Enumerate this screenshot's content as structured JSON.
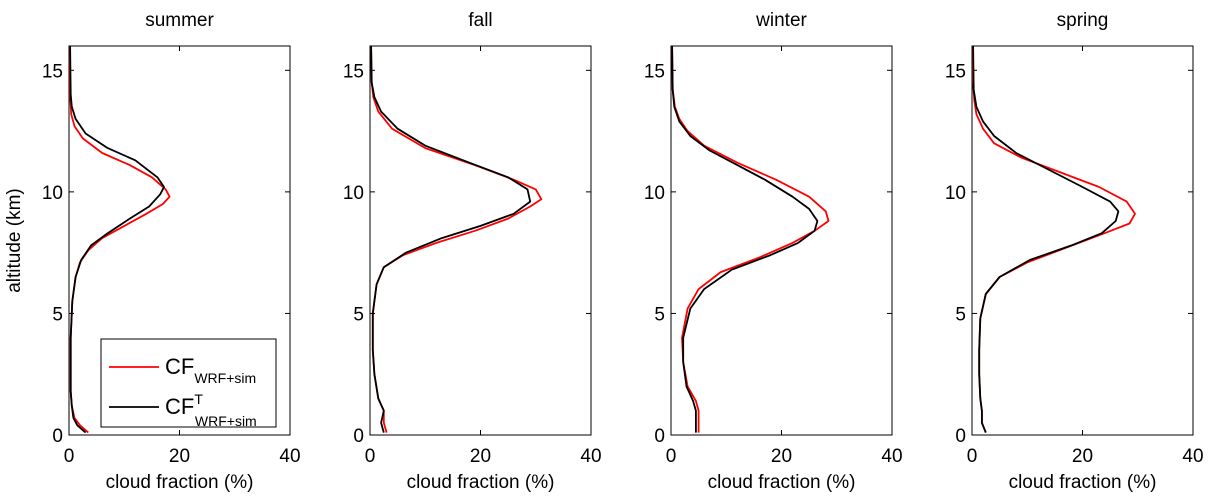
{
  "chart_data": [
    {
      "type": "line",
      "title": "summer",
      "xlabel": "cloud fraction (%)",
      "ylabel": "altitude (km)",
      "xlim": [
        0,
        40
      ],
      "ylim": [
        0,
        16
      ],
      "xticks": [
        "0",
        "20",
        "40"
      ],
      "yticks": [
        "0",
        "5",
        "10",
        "15"
      ],
      "series": [
        {
          "name": "red",
          "color": "#ff0000",
          "points": [
            [
              3.5,
              0.1
            ],
            [
              2,
              0.4
            ],
            [
              1,
              0.7
            ],
            [
              0.5,
              1.2
            ],
            [
              0.3,
              1.8
            ],
            [
              0.3,
              2.5
            ],
            [
              0.3,
              4
            ],
            [
              0.6,
              5.5
            ],
            [
              1.2,
              6.5
            ],
            [
              2,
              7.1
            ],
            [
              3.5,
              7.6
            ],
            [
              6,
              8.1
            ],
            [
              10,
              8.6
            ],
            [
              14,
              9.1
            ],
            [
              17,
              9.5
            ],
            [
              18.2,
              9.8
            ],
            [
              17.5,
              10.1
            ],
            [
              15,
              10.6
            ],
            [
              11,
              11.1
            ],
            [
              6,
              11.6
            ],
            [
              2.5,
              12.2
            ],
            [
              1,
              12.7
            ],
            [
              0.4,
              13.2
            ],
            [
              0.2,
              14
            ],
            [
              0.1,
              16
            ]
          ]
        },
        {
          "name": "black",
          "color": "#000000",
          "points": [
            [
              3,
              0.1
            ],
            [
              1.5,
              0.4
            ],
            [
              0.8,
              0.7
            ],
            [
              0.5,
              1.2
            ],
            [
              0.3,
              1.8
            ],
            [
              0.3,
              2.5
            ],
            [
              0.3,
              4
            ],
            [
              0.6,
              5.5
            ],
            [
              1.2,
              6.5
            ],
            [
              2.2,
              7.2
            ],
            [
              4,
              7.8
            ],
            [
              7,
              8.3
            ],
            [
              11,
              8.9
            ],
            [
              14.5,
              9.4
            ],
            [
              16.5,
              9.9
            ],
            [
              17.2,
              10.2
            ],
            [
              16,
              10.6
            ],
            [
              12,
              11.3
            ],
            [
              7,
              11.8
            ],
            [
              3,
              12.4
            ],
            [
              1.2,
              13
            ],
            [
              0.5,
              13.5
            ],
            [
              0.3,
              14
            ],
            [
              0.2,
              16
            ]
          ]
        }
      ],
      "legend": {
        "position": "bottom-left",
        "entries": [
          {
            "label": "CF",
            "sub": "WRF+sim",
            "sup": "",
            "color": "#ff0000"
          },
          {
            "label": "CF",
            "sub": "WRF+sim",
            "sup": "T",
            "color": "#000000"
          }
        ]
      }
    },
    {
      "type": "line",
      "title": "fall",
      "xlabel": "cloud fraction (%)",
      "ylabel": "",
      "xlim": [
        0,
        40
      ],
      "ylim": [
        0,
        16
      ],
      "xticks": [
        "0",
        "20",
        "40"
      ],
      "yticks": [
        "0",
        "5",
        "10",
        "15"
      ],
      "series": [
        {
          "name": "red",
          "color": "#ff0000",
          "points": [
            [
              3,
              0.1
            ],
            [
              2.5,
              0.5
            ],
            [
              2.5,
              1
            ],
            [
              1.5,
              1.5
            ],
            [
              0.8,
              2.5
            ],
            [
              0.5,
              3.5
            ],
            [
              0.5,
              5
            ],
            [
              1.2,
              6.2
            ],
            [
              2.5,
              6.9
            ],
            [
              6,
              7.4
            ],
            [
              12,
              7.9
            ],
            [
              19,
              8.4
            ],
            [
              25,
              8.9
            ],
            [
              29,
              9.4
            ],
            [
              31,
              9.7
            ],
            [
              30,
              10.1
            ],
            [
              26,
              10.5
            ],
            [
              19,
              11.1
            ],
            [
              10,
              11.8
            ],
            [
              4,
              12.6
            ],
            [
              1.5,
              13.3
            ],
            [
              0.6,
              13.9
            ],
            [
              0.3,
              14.5
            ],
            [
              0.2,
              16
            ]
          ]
        },
        {
          "name": "black",
          "color": "#000000",
          "points": [
            [
              2.5,
              0.1
            ],
            [
              2,
              0.5
            ],
            [
              2.5,
              1
            ],
            [
              1.5,
              1.5
            ],
            [
              0.8,
              2.5
            ],
            [
              0.5,
              3.5
            ],
            [
              0.5,
              5
            ],
            [
              1.2,
              6.2
            ],
            [
              2.5,
              6.9
            ],
            [
              6.5,
              7.5
            ],
            [
              13,
              8.1
            ],
            [
              20,
              8.6
            ],
            [
              26,
              9.1
            ],
            [
              29,
              9.6
            ],
            [
              28.5,
              10.1
            ],
            [
              25,
              10.6
            ],
            [
              18,
              11.2
            ],
            [
              10,
              11.9
            ],
            [
              5,
              12.6
            ],
            [
              2,
              13.3
            ],
            [
              0.8,
              13.9
            ],
            [
              0.3,
              14.5
            ],
            [
              0.2,
              16
            ]
          ]
        }
      ]
    },
    {
      "type": "line",
      "title": "winter",
      "xlabel": "cloud fraction (%)",
      "ylabel": "",
      "xlim": [
        0,
        40
      ],
      "ylim": [
        0,
        16
      ],
      "xticks": [
        "0",
        "20",
        "40"
      ],
      "yticks": [
        "0",
        "5",
        "10",
        "15"
      ],
      "series": [
        {
          "name": "red",
          "color": "#ff0000",
          "points": [
            [
              5,
              0.1
            ],
            [
              5,
              0.5
            ],
            [
              5,
              1
            ],
            [
              4.5,
              1.4
            ],
            [
              3,
              2
            ],
            [
              2.2,
              3
            ],
            [
              2,
              4
            ],
            [
              3,
              5.2
            ],
            [
              5,
              6
            ],
            [
              9,
              6.7
            ],
            [
              16,
              7.3
            ],
            [
              22,
              7.9
            ],
            [
              26,
              8.4
            ],
            [
              28.5,
              8.8
            ],
            [
              28,
              9.2
            ],
            [
              25,
              9.8
            ],
            [
              19,
              10.5
            ],
            [
              12,
              11.2
            ],
            [
              6,
              11.9
            ],
            [
              3,
              12.5
            ],
            [
              1.5,
              13
            ],
            [
              0.7,
              13.5
            ],
            [
              0.3,
              14.2
            ],
            [
              0.2,
              16
            ]
          ]
        },
        {
          "name": "black",
          "color": "#000000",
          "points": [
            [
              4.5,
              0.1
            ],
            [
              4.5,
              0.5
            ],
            [
              4.5,
              1
            ],
            [
              4,
              1.4
            ],
            [
              2.8,
              2
            ],
            [
              2.2,
              3
            ],
            [
              2.2,
              4
            ],
            [
              3.5,
              5.2
            ],
            [
              6,
              6
            ],
            [
              11,
              6.8
            ],
            [
              18,
              7.4
            ],
            [
              23,
              7.9
            ],
            [
              26,
              8.4
            ],
            [
              26.5,
              8.8
            ],
            [
              25,
              9.3
            ],
            [
              22,
              9.8
            ],
            [
              17,
              10.5
            ],
            [
              12,
              11.1
            ],
            [
              7,
              11.7
            ],
            [
              3.5,
              12.3
            ],
            [
              1.5,
              12.9
            ],
            [
              0.6,
              13.5
            ],
            [
              0.3,
              14.2
            ],
            [
              0.2,
              16
            ]
          ]
        }
      ]
    },
    {
      "type": "line",
      "title": "spring",
      "xlabel": "cloud fraction (%)",
      "ylabel": "",
      "xlim": [
        0,
        40
      ],
      "ylim": [
        0,
        16
      ],
      "xticks": [
        "0",
        "20",
        "40"
      ],
      "yticks": [
        "0",
        "5",
        "10",
        "15"
      ],
      "series": [
        {
          "name": "red",
          "color": "#ff0000",
          "points": [
            [
              2.5,
              0.1
            ],
            [
              1.8,
              0.5
            ],
            [
              1.8,
              1
            ],
            [
              1.5,
              1.5
            ],
            [
              1.3,
              2.5
            ],
            [
              1.3,
              3.5
            ],
            [
              1.5,
              4.8
            ],
            [
              2.5,
              5.8
            ],
            [
              5,
              6.5
            ],
            [
              10,
              7.1
            ],
            [
              17,
              7.7
            ],
            [
              24,
              8.3
            ],
            [
              28.5,
              8.7
            ],
            [
              29.5,
              9.1
            ],
            [
              28,
              9.6
            ],
            [
              23,
              10.2
            ],
            [
              16,
              10.8
            ],
            [
              9,
              11.4
            ],
            [
              4,
              12
            ],
            [
              2,
              12.6
            ],
            [
              0.8,
              13.2
            ],
            [
              0.4,
              13.8
            ],
            [
              0.2,
              14.5
            ],
            [
              0.1,
              16
            ]
          ]
        },
        {
          "name": "black",
          "color": "#000000",
          "points": [
            [
              2.5,
              0.1
            ],
            [
              1.8,
              0.5
            ],
            [
              1.8,
              1
            ],
            [
              1.5,
              1.5
            ],
            [
              1.3,
              2.5
            ],
            [
              1.3,
              3.5
            ],
            [
              1.5,
              4.8
            ],
            [
              2.5,
              5.8
            ],
            [
              5,
              6.5
            ],
            [
              10.5,
              7.2
            ],
            [
              18,
              7.8
            ],
            [
              23.5,
              8.3
            ],
            [
              26,
              8.8
            ],
            [
              26.5,
              9.2
            ],
            [
              25,
              9.6
            ],
            [
              20,
              10.2
            ],
            [
              14,
              10.9
            ],
            [
              8,
              11.6
            ],
            [
              4,
              12.3
            ],
            [
              2,
              12.9
            ],
            [
              0.8,
              13.5
            ],
            [
              0.3,
              14.2
            ],
            [
              0.2,
              16
            ]
          ]
        }
      ]
    }
  ]
}
